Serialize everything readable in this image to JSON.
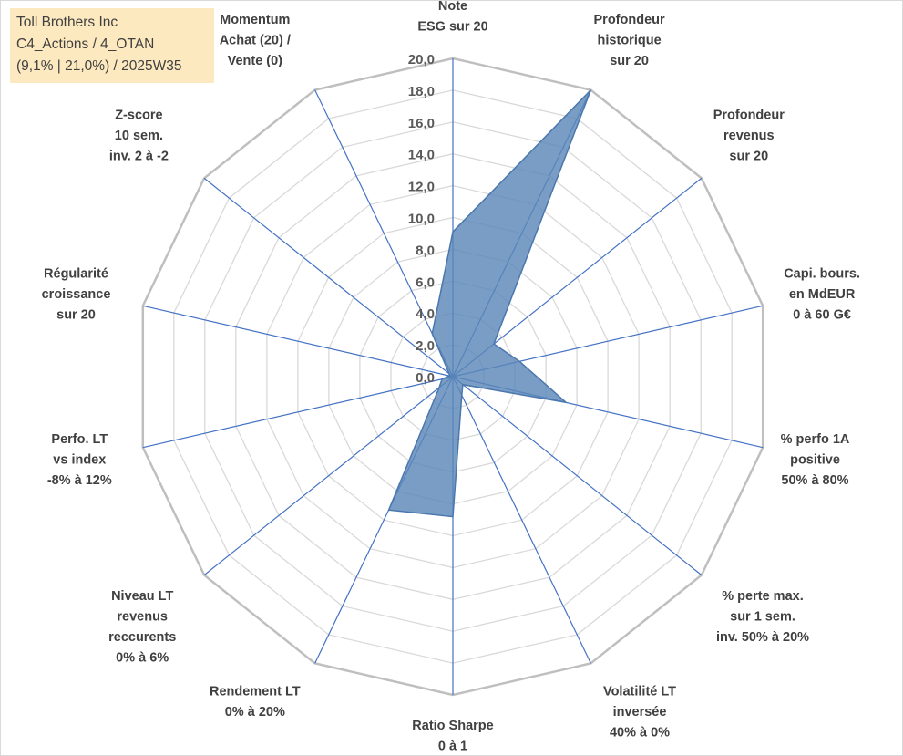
{
  "info_box": {
    "line1": "Toll Brothers Inc",
    "line2": "C4_Actions / 4_OTAN",
    "line3": "(9,1% | 21,0%) / 2025W35"
  },
  "colors": {
    "fill": "#5b87b8",
    "fill_opacity": "0.82",
    "stroke": "#4a77ae",
    "spoke": "#4472c4",
    "grid": "#d9d9d9",
    "outer_ring": "#bfbfbf",
    "info_bg": "#fde9c0"
  },
  "chart_data": {
    "type": "radar",
    "title": "",
    "rmin": 0,
    "rmax": 20,
    "tick_step": 2,
    "tick_labels": [
      "0,0",
      "2,0",
      "4,0",
      "6,0",
      "8,0",
      "10,0",
      "12,0",
      "14,0",
      "16,0",
      "18,0",
      "20,0"
    ],
    "grid": true,
    "axes": [
      {
        "lines": [
          "Note",
          "ESG sur 20"
        ]
      },
      {
        "lines": [
          "Profondeur",
          "historique",
          "sur 20"
        ]
      },
      {
        "lines": [
          "Profondeur",
          "revenus",
          "sur 20"
        ]
      },
      {
        "lines": [
          "Capi. bours.",
          "en MdEUR",
          "0 à 60 G€"
        ]
      },
      {
        "lines": [
          "% perfo 1A",
          "positive",
          "50% à 80%"
        ]
      },
      {
        "lines": [
          "% perte max.",
          "sur 1 sem.",
          "inv. 50% à 20%"
        ]
      },
      {
        "lines": [
          "Volatilité LT",
          "inversée",
          "40% à 0%"
        ]
      },
      {
        "lines": [
          "Ratio Sharpe",
          "0 à 1"
        ]
      },
      {
        "lines": [
          "Rendement LT",
          "0% à 20%"
        ]
      },
      {
        "lines": [
          "Niveau LT",
          "revenus",
          "reccurents",
          "0% à 6%"
        ]
      },
      {
        "lines": [
          "Perfo. LT",
          "vs index",
          "-8% à 12%"
        ]
      },
      {
        "lines": [
          "Régularité",
          "croissance",
          "sur 20"
        ]
      },
      {
        "lines": [
          "Z-score",
          "10 sem.",
          "inv. 2 à -2"
        ]
      },
      {
        "lines": [
          "Momentum",
          "Achat (20) /",
          "Vente (0)"
        ]
      }
    ],
    "series": [
      {
        "values": [
          9.1,
          20.0,
          3.3,
          4.3,
          7.3,
          0.8,
          1.3,
          8.8,
          9.3,
          1.1,
          0.7,
          0.2,
          0.3,
          3.0
        ]
      }
    ]
  }
}
